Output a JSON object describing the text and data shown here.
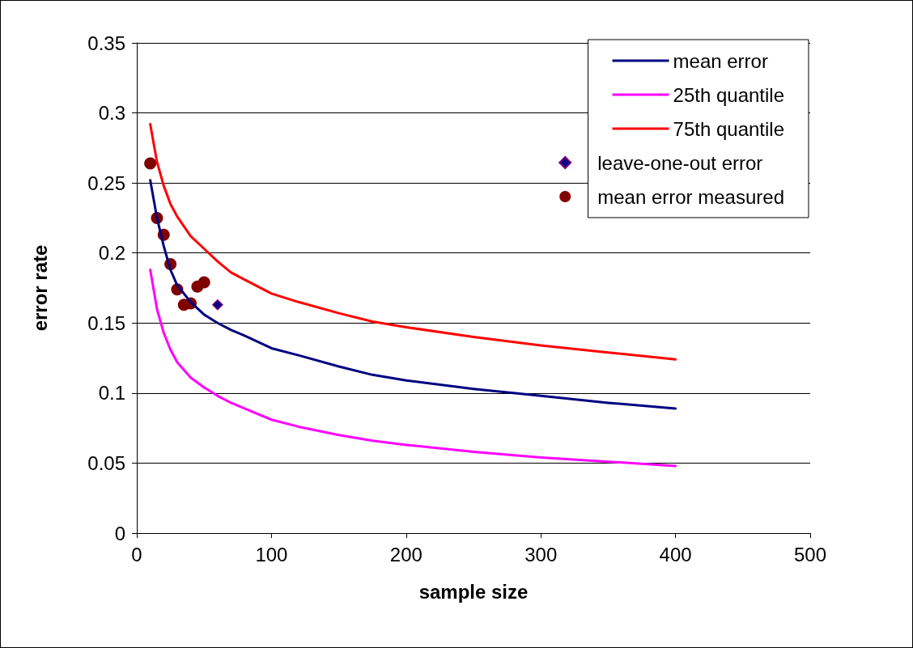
{
  "chart_data": {
    "type": "line",
    "xlabel": "sample size",
    "ylabel": "error rate",
    "xlim": [
      0,
      500
    ],
    "xticks": [
      0,
      100,
      200,
      300,
      400,
      500
    ],
    "ylim": [
      0,
      0.35
    ],
    "yticks": [
      0,
      0.05,
      0.1,
      0.15,
      0.2,
      0.25,
      0.3,
      0.35
    ],
    "grid": "y",
    "legend": "top right",
    "marker": "none",
    "line_style": "solid",
    "x": [
      10,
      15,
      20,
      25,
      30,
      40,
      50,
      60,
      70,
      80,
      100,
      120,
      150,
      175,
      200,
      250,
      300,
      350,
      400
    ],
    "series": [
      {
        "name": "mean error",
        "color": "#000080",
        "values": [
          0.252,
          0.225,
          0.205,
          0.188,
          0.177,
          0.165,
          0.156,
          0.15,
          0.145,
          0.141,
          0.132,
          0.127,
          0.119,
          0.113,
          0.109,
          0.103,
          0.098,
          0.093,
          0.089
        ]
      },
      {
        "name": "25th quantile",
        "color": "#ff00ff",
        "values": [
          0.188,
          0.16,
          0.143,
          0.131,
          0.122,
          0.111,
          0.104,
          0.098,
          0.093,
          0.089,
          0.081,
          0.076,
          0.07,
          0.066,
          0.063,
          0.058,
          0.054,
          0.051,
          0.048
        ]
      },
      {
        "name": "75th quantile",
        "color": "#ff0000",
        "values": [
          0.292,
          0.265,
          0.248,
          0.235,
          0.226,
          0.212,
          0.203,
          0.194,
          0.186,
          0.181,
          0.171,
          0.165,
          0.157,
          0.151,
          0.147,
          0.14,
          0.134,
          0.129,
          0.124
        ]
      },
      {
        "name": "leave-one-out error",
        "type": "scatter",
        "marker": "diamond",
        "color": "#000080",
        "x": [
          60
        ],
        "values": [
          0.163
        ]
      },
      {
        "name": "mean error measured",
        "type": "scatter",
        "marker": "circle",
        "color": "#800000",
        "x": [
          10,
          15,
          20,
          25,
          30,
          35,
          40,
          45,
          50
        ],
        "values": [
          0.264,
          0.225,
          0.213,
          0.192,
          0.174,
          0.163,
          0.164,
          0.176,
          0.179
        ]
      }
    ]
  }
}
